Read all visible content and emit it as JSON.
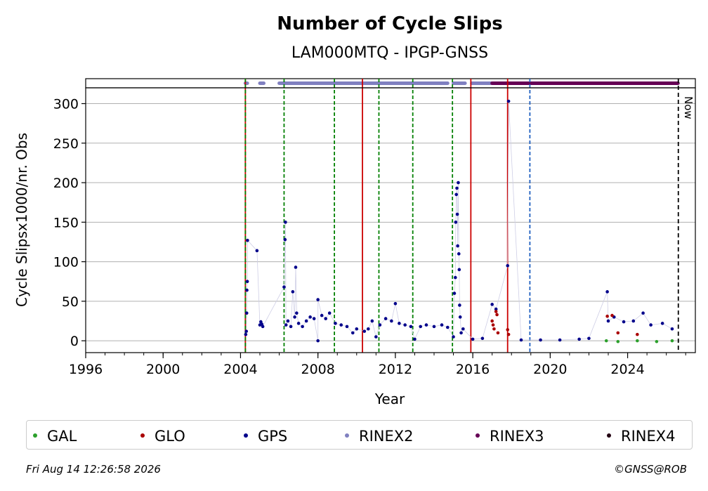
{
  "chart_data": {
    "type": "scatter",
    "title": "Number of Cycle Slips",
    "subtitle": "LAM000MTQ - IPGP-GNSS",
    "xlabel": "Year",
    "ylabel": "Cycle Slipsx1000/nr. Obs",
    "xlim": [
      1996,
      2027.5
    ],
    "ylim": [
      -15,
      320
    ],
    "x_ticks": [
      1996,
      2000,
      2004,
      2008,
      2012,
      2016,
      2020,
      2024
    ],
    "y_ticks": [
      0,
      50,
      100,
      150,
      200,
      250,
      300
    ],
    "grid": "horizontal",
    "legend_position": "bottom",
    "now_label": "Now",
    "now_year": 2026.62,
    "vertical_lines": [
      {
        "year": 2004.25,
        "color": "#cc0000",
        "style": "solid"
      },
      {
        "year": 2004.25,
        "color": "#008000",
        "style": "dashed"
      },
      {
        "year": 2006.25,
        "color": "#008000",
        "style": "dashed"
      },
      {
        "year": 2008.85,
        "color": "#008000",
        "style": "dashed"
      },
      {
        "year": 2010.3,
        "color": "#cc0000",
        "style": "solid"
      },
      {
        "year": 2011.15,
        "color": "#008000",
        "style": "dashed"
      },
      {
        "year": 2012.9,
        "color": "#008000",
        "style": "dashed"
      },
      {
        "year": 2014.95,
        "color": "#008000",
        "style": "dashed"
      },
      {
        "year": 2015.9,
        "color": "#cc0000",
        "style": "solid"
      },
      {
        "year": 2017.8,
        "color": "#cc0000",
        "style": "solid"
      },
      {
        "year": 2018.95,
        "color": "#1f5fbf",
        "style": "dashed"
      }
    ],
    "availability": [
      {
        "name": "RINEX2",
        "color": "#8080c0",
        "ranges": [
          [
            2004.25,
            2004.35
          ],
          [
            2005.0,
            2005.2
          ],
          [
            2006.0,
            2014.7
          ],
          [
            2015.0,
            2015.6
          ],
          [
            2015.95,
            2017.8
          ]
        ]
      },
      {
        "name": "RINEX3",
        "color": "#660055",
        "ranges": [
          [
            2017.0,
            2026.6
          ]
        ]
      }
    ],
    "series": [
      {
        "name": "GPS",
        "color": "#00008b",
        "points": [
          [
            2004.27,
            8
          ],
          [
            2004.3,
            12
          ],
          [
            2004.32,
            35
          ],
          [
            2004.33,
            64
          ],
          [
            2004.35,
            75
          ],
          [
            2004.36,
            127
          ],
          [
            2004.85,
            114
          ],
          [
            2005.0,
            20
          ],
          [
            2005.05,
            24
          ],
          [
            2005.1,
            21
          ],
          [
            2005.15,
            18
          ],
          [
            2006.25,
            68
          ],
          [
            2006.3,
            128
          ],
          [
            2006.32,
            150
          ],
          [
            2006.35,
            20
          ],
          [
            2006.45,
            25
          ],
          [
            2006.6,
            18
          ],
          [
            2006.7,
            62
          ],
          [
            2006.8,
            30
          ],
          [
            2006.85,
            93
          ],
          [
            2006.9,
            35
          ],
          [
            2007.0,
            22
          ],
          [
            2007.2,
            18
          ],
          [
            2007.4,
            25
          ],
          [
            2007.6,
            30
          ],
          [
            2007.8,
            28
          ],
          [
            2008.0,
            0
          ],
          [
            2008.0,
            52
          ],
          [
            2008.2,
            32
          ],
          [
            2008.4,
            28
          ],
          [
            2008.6,
            35
          ],
          [
            2008.9,
            22
          ],
          [
            2009.2,
            20
          ],
          [
            2009.5,
            18
          ],
          [
            2009.8,
            10
          ],
          [
            2010.0,
            15
          ],
          [
            2010.4,
            12
          ],
          [
            2010.6,
            15
          ],
          [
            2010.8,
            25
          ],
          [
            2011.0,
            5
          ],
          [
            2011.2,
            20
          ],
          [
            2011.5,
            28
          ],
          [
            2011.8,
            25
          ],
          [
            2012.0,
            47
          ],
          [
            2012.2,
            22
          ],
          [
            2012.5,
            20
          ],
          [
            2012.8,
            18
          ],
          [
            2013.0,
            2
          ],
          [
            2013.3,
            18
          ],
          [
            2013.6,
            20
          ],
          [
            2014.0,
            18
          ],
          [
            2014.4,
            20
          ],
          [
            2014.7,
            17
          ],
          [
            2015.0,
            5
          ],
          [
            2015.05,
            60
          ],
          [
            2015.1,
            80
          ],
          [
            2015.12,
            150
          ],
          [
            2015.15,
            185
          ],
          [
            2015.18,
            193
          ],
          [
            2015.2,
            160
          ],
          [
            2015.22,
            120
          ],
          [
            2015.25,
            200
          ],
          [
            2015.28,
            110
          ],
          [
            2015.3,
            90
          ],
          [
            2015.32,
            45
          ],
          [
            2015.35,
            30
          ],
          [
            2015.4,
            10
          ],
          [
            2015.5,
            15
          ],
          [
            2016.0,
            2
          ],
          [
            2016.5,
            3
          ],
          [
            2017.0,
            46
          ],
          [
            2017.2,
            40
          ],
          [
            2017.8,
            95
          ],
          [
            2017.85,
            303
          ],
          [
            2018.5,
            1
          ],
          [
            2019.5,
            1
          ],
          [
            2020.5,
            1
          ],
          [
            2021.5,
            2
          ],
          [
            2022.0,
            3
          ],
          [
            2022.95,
            62
          ],
          [
            2023.0,
            25
          ],
          [
            2023.3,
            30
          ],
          [
            2023.8,
            24
          ],
          [
            2024.3,
            25
          ],
          [
            2024.8,
            35
          ],
          [
            2025.2,
            20
          ],
          [
            2025.8,
            22
          ],
          [
            2026.3,
            15
          ]
        ]
      },
      {
        "name": "GLO",
        "color": "#aa0000",
        "points": [
          [
            2017.0,
            25
          ],
          [
            2017.05,
            20
          ],
          [
            2017.1,
            15
          ],
          [
            2017.2,
            37
          ],
          [
            2017.25,
            33
          ],
          [
            2017.3,
            10
          ],
          [
            2017.8,
            14
          ],
          [
            2017.85,
            8
          ],
          [
            2022.95,
            31
          ],
          [
            2023.2,
            32
          ],
          [
            2023.5,
            10
          ],
          [
            2024.5,
            8
          ]
        ]
      },
      {
        "name": "GAL",
        "color": "#2ca02c",
        "points": [
          [
            2022.9,
            0
          ],
          [
            2023.5,
            -1
          ],
          [
            2024.5,
            0
          ],
          [
            2025.5,
            -1
          ],
          [
            2026.3,
            0
          ]
        ]
      }
    ]
  },
  "legend": [
    {
      "label": "GAL",
      "color": "#2ca02c"
    },
    {
      "label": "GLO",
      "color": "#aa0000"
    },
    {
      "label": "GPS",
      "color": "#00008b"
    },
    {
      "label": "RINEX2",
      "color": "#8080c0"
    },
    {
      "label": "RINEX3",
      "color": "#660055"
    },
    {
      "label": "RINEX4",
      "color": "#220011"
    }
  ],
  "footer": {
    "timestamp": "Fri Aug 14 12:26:58 2026",
    "credit": "©GNSS@ROB"
  }
}
